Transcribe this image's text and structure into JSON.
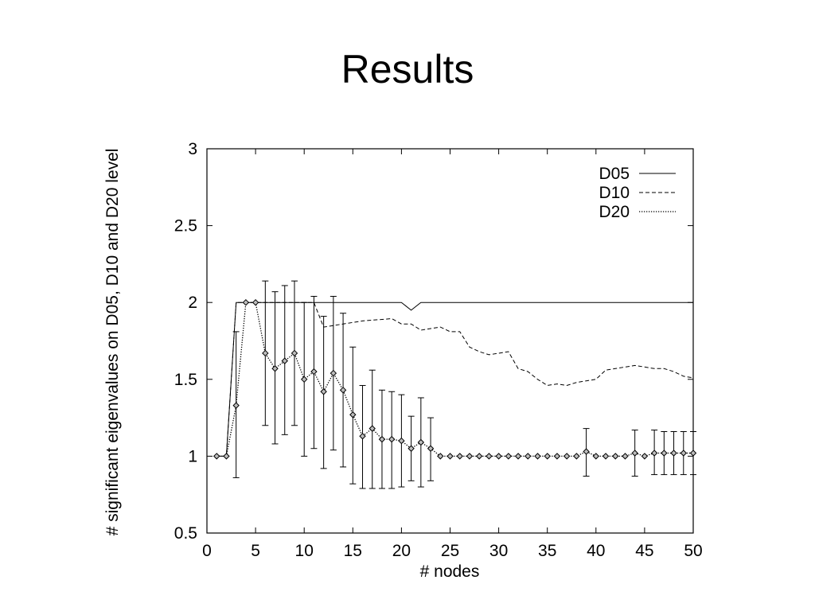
{
  "slide": {
    "title": "Results"
  },
  "chart_data": {
    "type": "line",
    "title": "",
    "xlabel": "# nodes",
    "ylabel": "# significant eigenvalues on D05, D10 and D20 level",
    "xlim": [
      0,
      50
    ],
    "ylim": [
      0.5,
      3
    ],
    "x_ticks": [
      "0",
      "5",
      "10",
      "15",
      "20",
      "25",
      "30",
      "35",
      "40",
      "45",
      "50"
    ],
    "y_ticks": [
      "0.5",
      "1",
      "1.5",
      "2",
      "2.5",
      "3"
    ],
    "grid": false,
    "legend_position": "top-right",
    "series": [
      {
        "name": "D05",
        "style": "solid",
        "points": [
          [
            1,
            1
          ],
          [
            2,
            1
          ],
          [
            3,
            2
          ],
          [
            4,
            2
          ],
          [
            5,
            2
          ],
          [
            6,
            2
          ],
          [
            7,
            2
          ],
          [
            8,
            2
          ],
          [
            9,
            2
          ],
          [
            10,
            2
          ],
          [
            11,
            2
          ],
          [
            12,
            2
          ],
          [
            13,
            2
          ],
          [
            14,
            2
          ],
          [
            15,
            2
          ],
          [
            16,
            2
          ],
          [
            17,
            2
          ],
          [
            18,
            2
          ],
          [
            19,
            2
          ],
          [
            20,
            2
          ],
          [
            21,
            1.95
          ],
          [
            22,
            2
          ],
          [
            23,
            2
          ],
          [
            24,
            2
          ],
          [
            25,
            2
          ],
          [
            26,
            2
          ],
          [
            27,
            2
          ],
          [
            28,
            2
          ],
          [
            29,
            2
          ],
          [
            30,
            2
          ],
          [
            31,
            2
          ],
          [
            32,
            2
          ],
          [
            33,
            2
          ],
          [
            34,
            2
          ],
          [
            35,
            2
          ],
          [
            36,
            2
          ],
          [
            37,
            2
          ],
          [
            38,
            2
          ],
          [
            39,
            2
          ],
          [
            40,
            2
          ],
          [
            41,
            2
          ],
          [
            42,
            2
          ],
          [
            43,
            2
          ],
          [
            44,
            2
          ],
          [
            45,
            2
          ],
          [
            46,
            2
          ],
          [
            47,
            2
          ],
          [
            48,
            2
          ],
          [
            49,
            2
          ],
          [
            50,
            2
          ]
        ]
      },
      {
        "name": "D10",
        "style": "dashed",
        "points": [
          [
            1,
            1
          ],
          [
            2,
            1
          ],
          [
            3,
            2
          ],
          [
            4,
            2
          ],
          [
            5,
            2
          ],
          [
            6,
            2
          ],
          [
            7,
            2
          ],
          [
            8,
            2
          ],
          [
            9,
            2
          ],
          [
            10,
            2
          ],
          [
            11,
            2
          ],
          [
            12,
            1.84
          ],
          [
            13,
            1.85
          ],
          [
            14,
            1.86
          ],
          [
            15,
            1.87
          ],
          [
            16,
            1.88
          ],
          [
            17,
            1.885
          ],
          [
            18,
            1.89
          ],
          [
            19,
            1.895
          ],
          [
            20,
            1.86
          ],
          [
            21,
            1.86
          ],
          [
            22,
            1.82
          ],
          [
            23,
            1.83
          ],
          [
            24,
            1.84
          ],
          [
            25,
            1.81
          ],
          [
            26,
            1.81
          ],
          [
            27,
            1.71
          ],
          [
            28,
            1.68
          ],
          [
            29,
            1.66
          ],
          [
            30,
            1.67
          ],
          [
            31,
            1.68
          ],
          [
            32,
            1.57
          ],
          [
            33,
            1.55
          ],
          [
            34,
            1.5
          ],
          [
            35,
            1.46
          ],
          [
            36,
            1.47
          ],
          [
            37,
            1.46
          ],
          [
            38,
            1.48
          ],
          [
            39,
            1.49
          ],
          [
            40,
            1.5
          ],
          [
            41,
            1.56
          ],
          [
            42,
            1.57
          ],
          [
            43,
            1.58
          ],
          [
            44,
            1.59
          ],
          [
            45,
            1.58
          ],
          [
            46,
            1.57
          ],
          [
            47,
            1.57
          ],
          [
            48,
            1.55
          ],
          [
            49,
            1.52
          ],
          [
            50,
            1.51
          ]
        ]
      },
      {
        "name": "D20",
        "style": "dotted",
        "markers": "diamond",
        "points": [
          [
            1,
            1
          ],
          [
            2,
            1
          ],
          [
            3,
            1.33
          ],
          [
            4,
            2
          ],
          [
            5,
            2
          ],
          [
            6,
            1.67
          ],
          [
            7,
            1.57
          ],
          [
            8,
            1.62
          ],
          [
            9,
            1.67
          ],
          [
            10,
            1.5
          ],
          [
            11,
            1.55
          ],
          [
            12,
            1.42
          ],
          [
            13,
            1.54
          ],
          [
            14,
            1.43
          ],
          [
            15,
            1.27
          ],
          [
            16,
            1.13
          ],
          [
            17,
            1.18
          ],
          [
            18,
            1.11
          ],
          [
            19,
            1.11
          ],
          [
            20,
            1.1
          ],
          [
            21,
            1.05
          ],
          [
            22,
            1.09
          ],
          [
            23,
            1.05
          ],
          [
            24,
            1
          ],
          [
            25,
            1
          ],
          [
            26,
            1
          ],
          [
            27,
            1
          ],
          [
            28,
            1
          ],
          [
            29,
            1
          ],
          [
            30,
            1
          ],
          [
            31,
            1
          ],
          [
            32,
            1
          ],
          [
            33,
            1
          ],
          [
            34,
            1
          ],
          [
            35,
            1
          ],
          [
            36,
            1
          ],
          [
            37,
            1
          ],
          [
            38,
            1
          ],
          [
            39,
            1.03
          ],
          [
            40,
            1
          ],
          [
            41,
            1
          ],
          [
            42,
            1
          ],
          [
            43,
            1
          ],
          [
            44,
            1.02
          ],
          [
            45,
            1
          ],
          [
            46,
            1.02
          ],
          [
            47,
            1.02
          ],
          [
            48,
            1.02
          ],
          [
            49,
            1.02
          ],
          [
            50,
            1.02
          ]
        ],
        "error_bars": [
          {
            "x": 3,
            "low": 0.86,
            "high": 1.81
          },
          {
            "x": 6,
            "low": 1.2,
            "high": 2.14
          },
          {
            "x": 7,
            "low": 1.08,
            "high": 2.07
          },
          {
            "x": 8,
            "low": 1.14,
            "high": 2.11
          },
          {
            "x": 9,
            "low": 1.2,
            "high": 2.14
          },
          {
            "x": 10,
            "low": 1.0,
            "high": 2.0
          },
          {
            "x": 11,
            "low": 1.05,
            "high": 2.04
          },
          {
            "x": 12,
            "low": 0.92,
            "high": 1.91
          },
          {
            "x": 13,
            "low": 1.04,
            "high": 2.04
          },
          {
            "x": 14,
            "low": 0.93,
            "high": 1.93
          },
          {
            "x": 15,
            "low": 0.82,
            "high": 1.71
          },
          {
            "x": 16,
            "low": 0.79,
            "high": 1.46
          },
          {
            "x": 17,
            "low": 0.79,
            "high": 1.56
          },
          {
            "x": 18,
            "low": 0.79,
            "high": 1.43
          },
          {
            "x": 19,
            "low": 0.79,
            "high": 1.42
          },
          {
            "x": 20,
            "low": 0.8,
            "high": 1.4
          },
          {
            "x": 21,
            "low": 0.84,
            "high": 1.26
          },
          {
            "x": 22,
            "low": 0.8,
            "high": 1.38
          },
          {
            "x": 23,
            "low": 0.84,
            "high": 1.25
          },
          {
            "x": 39,
            "low": 0.87,
            "high": 1.18
          },
          {
            "x": 44,
            "low": 0.87,
            "high": 1.17
          },
          {
            "x": 46,
            "low": 0.88,
            "high": 1.17
          },
          {
            "x": 47,
            "low": 0.88,
            "high": 1.16
          },
          {
            "x": 48,
            "low": 0.88,
            "high": 1.16
          },
          {
            "x": 49,
            "low": 0.88,
            "high": 1.16
          },
          {
            "x": 50,
            "low": 0.88,
            "high": 1.16
          }
        ]
      }
    ]
  }
}
